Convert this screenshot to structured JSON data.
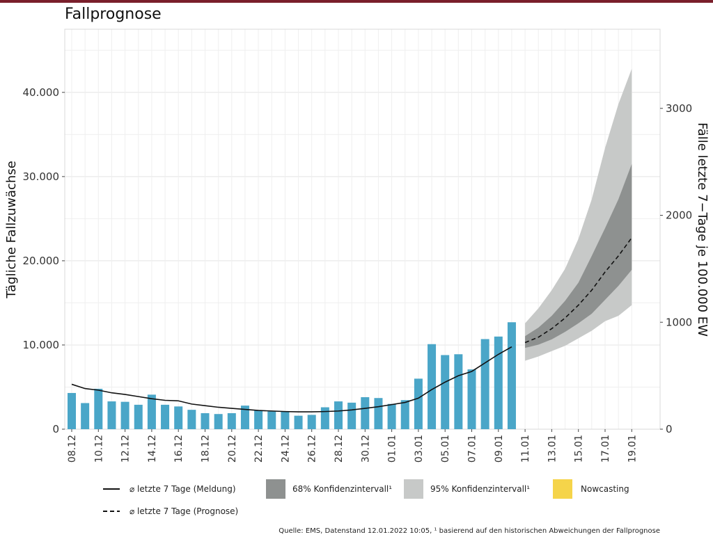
{
  "header": {
    "title": "Fallprognose"
  },
  "footer": {
    "source": "Quelle: EMS, Datenstand 12.01.2022 10:05, ¹ basierend auf den historischen Abweichungen der Fallprognose"
  },
  "colors": {
    "bars": "#4aa6c8",
    "line": "#111111",
    "ci68": "#8e9190",
    "ci95": "#c7c9c8",
    "nowcasting": "#f5d44a",
    "grid": "#e4e4e4"
  },
  "chart_data": {
    "type": "bar",
    "title": "Fallprognose",
    "ylabel": "Tägliche Fallzuwächse",
    "y2label": "Fälle letzte 7−Tage je 100.000 EW",
    "ylim": [
      0,
      47500
    ],
    "y2lim": [
      0,
      3740
    ],
    "yticks": [
      0,
      10000,
      20000,
      30000,
      40000
    ],
    "ytick_labels": [
      "0",
      "10.000",
      "20.000",
      "30.000",
      "40.000"
    ],
    "y2ticks": [
      0,
      1000,
      2000,
      3000
    ],
    "y2tick_labels": [
      "0",
      "1000",
      "2000",
      "3000"
    ],
    "xtick_labels": [
      "08.12",
      "10.12",
      "12.12",
      "14.12",
      "16.12",
      "18.12",
      "20.12",
      "22.12",
      "24.12",
      "26.12",
      "28.12",
      "30.12",
      "01.01",
      "03.01",
      "05.01",
      "07.01",
      "09.01",
      "11.01",
      "13.01",
      "15.01",
      "17.01",
      "19.01"
    ],
    "grid": true,
    "bars": {
      "dates": [
        "08.12",
        "09.12",
        "10.12",
        "11.12",
        "12.12",
        "13.12",
        "14.12",
        "15.12",
        "16.12",
        "17.12",
        "18.12",
        "19.12",
        "20.12",
        "21.12",
        "22.12",
        "23.12",
        "24.12",
        "25.12",
        "26.12",
        "27.12",
        "28.12",
        "29.12",
        "30.12",
        "31.12",
        "01.01",
        "02.01",
        "03.01",
        "04.01",
        "05.01",
        "06.01",
        "07.01",
        "08.01",
        "09.01",
        "10.01"
      ],
      "values": [
        4300,
        3100,
        4800,
        3300,
        3250,
        2900,
        4100,
        2900,
        2700,
        2300,
        1900,
        1800,
        1900,
        2800,
        2200,
        2100,
        2100,
        1600,
        1700,
        2600,
        3300,
        3150,
        3800,
        3700,
        3000,
        3450,
        6000,
        10100,
        8800,
        8900,
        7100,
        10700,
        11000,
        12700
      ]
    },
    "series": [
      {
        "name": "⌀ letzte 7 Tage (Meldung)",
        "dates": [
          "08.12",
          "09.12",
          "10.12",
          "11.12",
          "12.12",
          "13.12",
          "14.12",
          "15.12",
          "16.12",
          "17.12",
          "18.12",
          "19.12",
          "20.12",
          "21.12",
          "22.12",
          "23.12",
          "24.12",
          "25.12",
          "26.12",
          "27.12",
          "28.12",
          "29.12",
          "30.12",
          "31.12",
          "01.01",
          "02.01",
          "03.01",
          "04.01",
          "05.01",
          "06.01",
          "07.01",
          "08.01",
          "09.01",
          "10.01"
        ],
        "values": [
          420,
          380,
          365,
          340,
          325,
          305,
          285,
          270,
          265,
          235,
          220,
          205,
          195,
          185,
          175,
          170,
          165,
          162,
          162,
          165,
          170,
          180,
          195,
          210,
          230,
          250,
          290,
          370,
          440,
          500,
          540,
          620,
          700,
          770
        ]
      },
      {
        "name": "⌀ letzte 7 Tage (Prognose)",
        "dates": [
          "11.01",
          "12.01",
          "13.01",
          "14.01",
          "15.01",
          "16.01",
          "17.01",
          "18.01",
          "19.01"
        ],
        "values": [
          810,
          860,
          940,
          1040,
          1160,
          1300,
          1470,
          1620,
          1790
        ]
      }
    ],
    "bands": [
      {
        "name": "68% Konfidenzintervall¹",
        "dates": [
          "11.01",
          "12.01",
          "13.01",
          "14.01",
          "15.01",
          "16.01",
          "17.01",
          "18.01",
          "19.01"
        ],
        "lower": [
          760,
          790,
          840,
          910,
          990,
          1080,
          1210,
          1340,
          1490
        ],
        "upper": [
          870,
          950,
          1060,
          1200,
          1370,
          1620,
          1880,
          2150,
          2480
        ]
      },
      {
        "name": "95% Konfidenzintervall¹",
        "dates": [
          "11.01",
          "12.01",
          "13.01",
          "14.01",
          "15.01",
          "16.01",
          "17.01",
          "18.01",
          "19.01"
        ],
        "lower": [
          640,
          680,
          730,
          780,
          850,
          920,
          1010,
          1060,
          1160
        ],
        "upper": [
          990,
          1130,
          1300,
          1500,
          1780,
          2150,
          2630,
          3040,
          3370
        ]
      }
    ],
    "legend": {
      "placement": "bottom",
      "items": [
        {
          "label": "⌀ letzte 7 Tage (Meldung)",
          "kind": "solid-line"
        },
        {
          "label": "68% Konfidenzintervall¹",
          "kind": "box-ci68"
        },
        {
          "label": "95% Konfidenzintervall¹",
          "kind": "box-ci95"
        },
        {
          "label": "Nowcasting",
          "kind": "box-nowcasting"
        },
        {
          "label": "⌀ letzte 7 Tage (Prognose)",
          "kind": "dashed-line"
        }
      ]
    }
  }
}
